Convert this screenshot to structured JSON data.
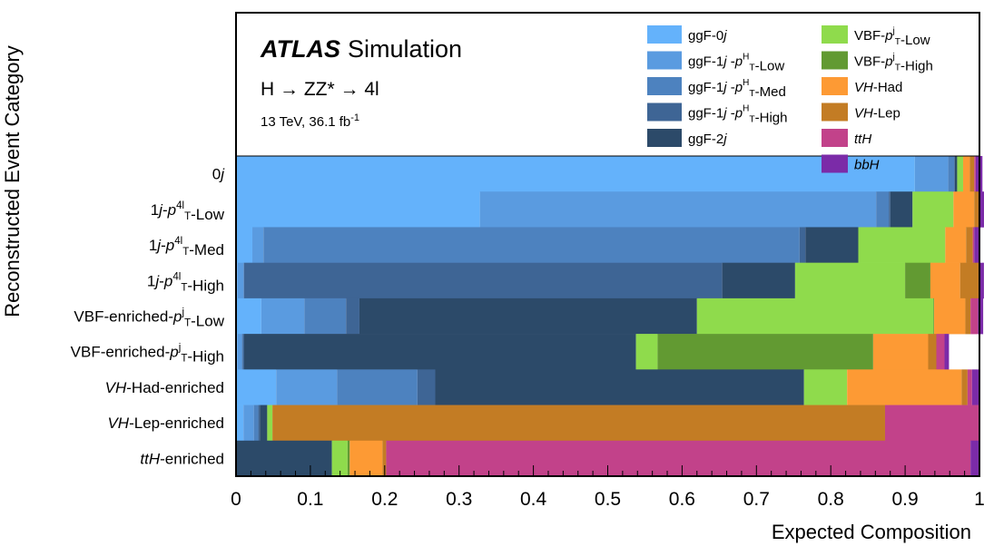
{
  "figure": {
    "experiment": "ATLAS",
    "label": "Simulation",
    "process": "H → ZZ* → 4l",
    "energy": "13 TeV, 36.1 fb",
    "energy_sup": "-1"
  },
  "chart_data": {
    "type": "bar",
    "orientation": "horizontal-stacked",
    "xlabel": "Expected Composition",
    "ylabel": "Reconstructed Event Category",
    "xlim": [
      0,
      1
    ],
    "xticks": [
      "0",
      "0.1",
      "0.2",
      "0.3",
      "0.4",
      "0.5",
      "0.6",
      "0.7",
      "0.8",
      "0.9",
      "1"
    ],
    "grid": false,
    "legend_position": "top-right",
    "categories": [
      {
        "parts": [
          {
            "t": "0"
          },
          {
            "t": "j",
            "i": true
          }
        ]
      },
      {
        "parts": [
          {
            "t": "1"
          },
          {
            "t": "j",
            "i": true
          },
          {
            "t": "-"
          },
          {
            "t": "p",
            "i": true,
            "sup": "4l",
            "sub": "T"
          },
          {
            "t": "-Low"
          }
        ]
      },
      {
        "parts": [
          {
            "t": "1"
          },
          {
            "t": "j",
            "i": true
          },
          {
            "t": "-"
          },
          {
            "t": "p",
            "i": true,
            "sup": "4l",
            "sub": "T"
          },
          {
            "t": "-Med"
          }
        ]
      },
      {
        "parts": [
          {
            "t": "1"
          },
          {
            "t": "j",
            "i": true
          },
          {
            "t": "-"
          },
          {
            "t": "p",
            "i": true,
            "sup": "4l",
            "sub": "T"
          },
          {
            "t": "-High"
          }
        ]
      },
      {
        "parts": [
          {
            "t": "VBF-enriched-"
          },
          {
            "t": "p",
            "i": true,
            "sup": "j",
            "sub": "T"
          },
          {
            "t": "-Low"
          }
        ]
      },
      {
        "parts": [
          {
            "t": "VBF-enriched-"
          },
          {
            "t": "p",
            "i": true,
            "sup": "j",
            "sub": "T"
          },
          {
            "t": "-High"
          }
        ]
      },
      {
        "parts": [
          {
            "t": "VH",
            "i": true
          },
          {
            "t": "-Had-enriched"
          }
        ]
      },
      {
        "parts": [
          {
            "t": "VH",
            "i": true
          },
          {
            "t": "-Lep-enriched"
          }
        ]
      },
      {
        "parts": [
          {
            "t": "ttH",
            "i": true
          },
          {
            "t": "-enriched"
          }
        ]
      }
    ],
    "series": [
      {
        "name": "ggF-0j",
        "color": "#64b2fb",
        "label_parts": [
          {
            "t": "ggF-0"
          },
          {
            "t": "j",
            "i": true
          }
        ],
        "values": [
          0.913,
          0.328,
          0.022,
          0.002,
          0.034,
          0.002,
          0.054,
          0.01,
          0.0
        ]
      },
      {
        "name": "ggF-1j-pT^H-Low",
        "color": "#5a9be0",
        "label_parts": [
          {
            "t": "ggF-1"
          },
          {
            "t": "j",
            "i": true
          },
          {
            "t": " -"
          },
          {
            "t": "p",
            "i": true,
            "sup": "H",
            "sub": "T"
          },
          {
            "t": "-Low"
          }
        ],
        "values": [
          0.045,
          0.533,
          0.015,
          0.008,
          0.058,
          0.006,
          0.082,
          0.014,
          0.0
        ]
      },
      {
        "name": "ggF-1j-pT^H-Med",
        "color": "#4d82bf",
        "label_parts": [
          {
            "t": "ggF-1"
          },
          {
            "t": "j",
            "i": true
          },
          {
            "t": " -"
          },
          {
            "t": "p",
            "i": true,
            "sup": "H",
            "sub": "T"
          },
          {
            "t": "-Med"
          }
        ],
        "values": [
          0.008,
          0.017,
          0.721,
          0.001,
          0.056,
          0.001,
          0.108,
          0.006,
          0.0
        ]
      },
      {
        "name": "ggF-1j-pT^H-High",
        "color": "#3e6595",
        "label_parts": [
          {
            "t": "ggF-1"
          },
          {
            "t": "j",
            "i": true
          },
          {
            "t": " -"
          },
          {
            "t": "p",
            "i": true,
            "sup": "H",
            "sub": "T"
          },
          {
            "t": "-High"
          }
        ],
        "values": [
          0.001,
          0.002,
          0.008,
          0.643,
          0.018,
          0.002,
          0.024,
          0.002,
          0.0
        ]
      },
      {
        "name": "ggF-2j",
        "color": "#2c4a69",
        "label_parts": [
          {
            "t": "ggF-2"
          },
          {
            "t": "j",
            "i": true
          }
        ],
        "values": [
          0.003,
          0.03,
          0.071,
          0.098,
          0.454,
          0.527,
          0.496,
          0.01,
          0.129
        ]
      },
      {
        "name": "VBF-pTj-Low",
        "color": "#8fdb4c",
        "label_parts": [
          {
            "t": "VBF-"
          },
          {
            "t": "p",
            "i": true,
            "sup": "j",
            "sub": "T"
          },
          {
            "t": "-Low"
          }
        ],
        "values": [
          0.008,
          0.055,
          0.117,
          0.148,
          0.318,
          0.029,
          0.058,
          0.007,
          0.021
        ]
      },
      {
        "name": "VBF-pTj-High",
        "color": "#629a32",
        "label_parts": [
          {
            "t": "VBF-"
          },
          {
            "t": "p",
            "i": true,
            "sup": "j",
            "sub": "T"
          },
          {
            "t": "-High"
          }
        ],
        "values": [
          0.0,
          0.0,
          0.0,
          0.034,
          0.001,
          0.29,
          0.0,
          0.0,
          0.003
        ]
      },
      {
        "name": "VH-Had",
        "color": "#fd9a34",
        "label_parts": [
          {
            "t": "VH",
            "i": true
          },
          {
            "t": "-Had"
          }
        ],
        "values": [
          0.009,
          0.028,
          0.028,
          0.04,
          0.042,
          0.074,
          0.154,
          0.0,
          0.044
        ]
      },
      {
        "name": "VH-Lep",
        "color": "#c37c24",
        "label_parts": [
          {
            "t": "VH",
            "i": true
          },
          {
            "t": "-Lep"
          }
        ],
        "values": [
          0.006,
          0.006,
          0.009,
          0.025,
          0.007,
          0.011,
          0.008,
          0.824,
          0.005
        ]
      },
      {
        "name": "ttH",
        "color": "#c2428a",
        "label_parts": [
          {
            "t": "ttH",
            "i": true
          }
        ],
        "values": [
          0.002,
          0.002,
          0.002,
          0.001,
          0.01,
          0.011,
          0.006,
          0.126,
          0.786
        ]
      },
      {
        "name": "bbH",
        "color": "#7b2ba8",
        "label_parts": [
          {
            "t": "bbH",
            "i": true
          }
        ],
        "values": [
          0.009,
          0.006,
          0.007,
          0.006,
          0.007,
          0.006,
          0.009,
          0.001,
          0.012
        ]
      }
    ]
  }
}
